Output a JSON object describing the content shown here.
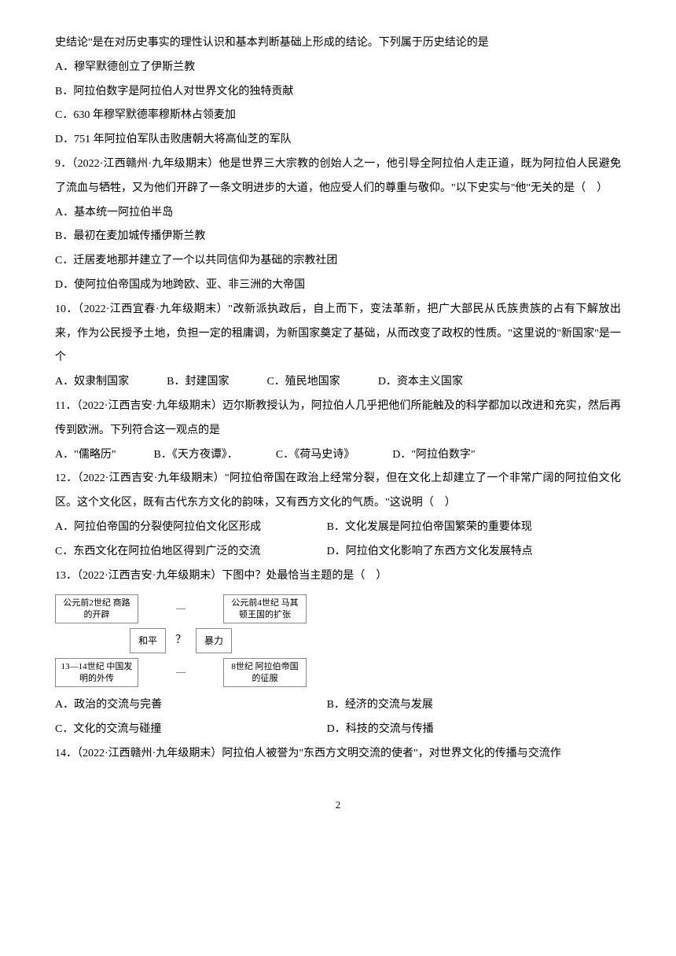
{
  "intro_line": "史结论\"是在对历史事实的理性认识和基本判断基础上形成的结论。下列属于历史结论的是",
  "q8_opts": {
    "a": "A．穆罕默德创立了伊斯兰教",
    "b": "B．阿拉伯数字是阿拉伯人对世界文化的独特贡献",
    "c": "C．630 年穆罕默德率穆斯林占领麦加",
    "d": "D．751 年阿拉伯军队击败唐朝大将高仙芝的军队"
  },
  "q9_stem": "9．（2022·江西赣州·九年级期末）他是世界三大宗教的创始人之一，他引导全阿拉伯人走正道，既为阿拉伯人民避免了流血与牺牲，又为他们开辟了一条文明进步的大道，他应受人们的尊重与敬仰。\"以下史实与\"他\"无关的是（　）",
  "q9_opts": {
    "a": "A．基本统一阿拉伯半岛",
    "b": "B．最初在麦加城传播伊斯兰教",
    "c": "C．迁居麦地那并建立了一个以共同信仰为基础的宗教社团",
    "d": "D．使阿拉伯帝国成为地跨欧、亚、非三洲的大帝国"
  },
  "q10_stem": "10．（2022·江西宜春·九年级期末）\"改新派执政后，自上而下，变法革新，把广大部民从氏族贵族的占有下解放出来，作为公民授予土地，负担一定的租庸调，为新国家奠定了基础，从而改变了政权的性质。\"这里说的\"新国家\"是一个",
  "q10_opts": {
    "a": "A．奴隶制国家",
    "b": "B．封建国家",
    "c": "C．殖民地国家",
    "d": "D．资本主义国家"
  },
  "q11_stem": "11．（2022·江西吉安·九年级期末）迈尔斯教授认为，阿拉伯人几乎把他们所能触及的科学都加以改进和充实，然后再传到欧洲。下列符合这一观点的是",
  "q11_opts": {
    "a": "A．\"儒略历\"",
    "b": "B．《天方夜谭》．",
    "c": "C．《荷马史诗》",
    "d": "D．\"阿拉伯数字\""
  },
  "q12_stem": "12．（2022·江西吉安·九年级期末）\"阿拉伯帝国在政治上经常分裂，但在文化上却建立了一个非常广阔的阿拉伯文化区。这个文化区，既有古代东方文化的韵味，又有西方文化的气质。\"这说明（　）",
  "q12_opts": {
    "a": "A．阿拉伯帝国的分裂使阿拉伯文化区形成",
    "b": "B．文化发展是阿拉伯帝国繁荣的重要体现",
    "c": "C．东西文化在阿拉伯地区得到广泛的交流",
    "d": "D．阿拉伯文化影响了东西方文化发展特点"
  },
  "q13_stem": "13．（2022·江西吉安·九年级期末）下图中？处最恰当主题的是（　）",
  "q13_diagram": {
    "top_left": "公元前2世纪\n商路的开辟",
    "top_right": "公元前4世纪\n马其顿王国的扩张",
    "mid_left": "和平",
    "mid_center": "？",
    "mid_right": "暴力",
    "bottom_left": "13—14世纪\n中国发明的外传",
    "bottom_right": "8世纪\n阿拉伯帝国的征服",
    "box_border_color": "#888888",
    "box_bg": "#ffffff",
    "font_size_small": 11
  },
  "q13_opts": {
    "a": "A．政治的交流与完善",
    "b": "B．经济的交流与发展",
    "c": "C．文化的交流与碰撞",
    "d": "D．科技的交流与传播"
  },
  "q14_stem": "14．（2022·江西赣州·九年级期末）阿拉伯人被誉为\"东西方文明交流的使者\"，对世界文化的传播与交流作",
  "page_number": "2"
}
